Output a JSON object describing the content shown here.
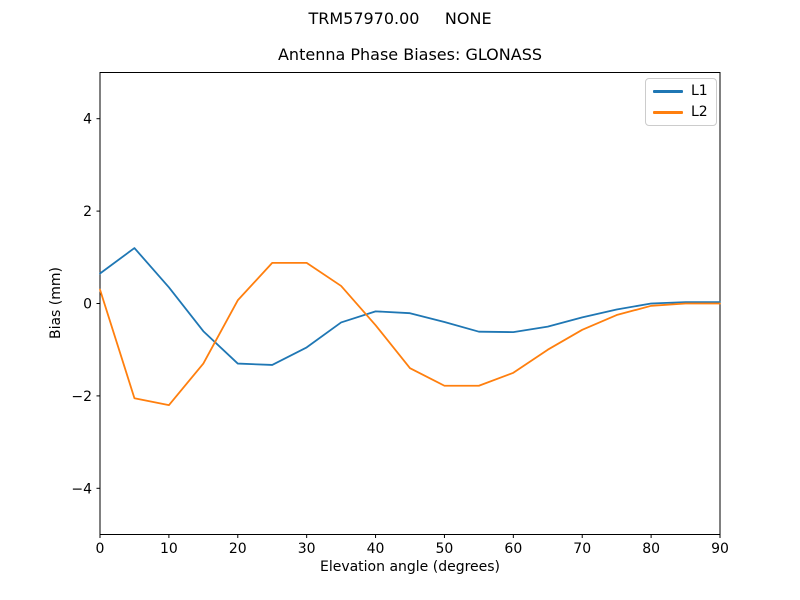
{
  "figure": {
    "suptitle": "TRM57970.00     NONE"
  },
  "chart_data": {
    "type": "line",
    "title": "Antenna Phase Biases: GLONASS",
    "xlabel": "Elevation angle (degrees)",
    "ylabel": "Bias (mm)",
    "xlim": [
      0,
      90
    ],
    "ylim": [
      -5,
      5
    ],
    "xticks": [
      0,
      10,
      20,
      30,
      40,
      50,
      60,
      70,
      80,
      90
    ],
    "yticks": [
      -4,
      -2,
      0,
      2,
      4
    ],
    "grid": false,
    "legend_position": "upper right",
    "x": [
      0,
      5,
      10,
      15,
      20,
      25,
      30,
      35,
      40,
      45,
      50,
      55,
      60,
      65,
      70,
      75,
      80,
      85,
      90
    ],
    "series": [
      {
        "name": "L1",
        "color": "#1f77b4",
        "values": [
          0.65,
          1.2,
          0.35,
          -0.6,
          -1.3,
          -1.33,
          -0.95,
          -0.41,
          -0.17,
          -0.21,
          -0.4,
          -0.61,
          -0.62,
          -0.5,
          -0.3,
          -0.13,
          0.0,
          0.03,
          0.03
        ]
      },
      {
        "name": "L2",
        "color": "#ff7f0e",
        "values": [
          0.3,
          -2.05,
          -2.2,
          -1.3,
          0.07,
          0.88,
          0.88,
          0.38,
          -0.47,
          -1.4,
          -1.78,
          -1.78,
          -1.5,
          -1.0,
          -0.57,
          -0.25,
          -0.05,
          0.0,
          0.0
        ]
      }
    ]
  }
}
